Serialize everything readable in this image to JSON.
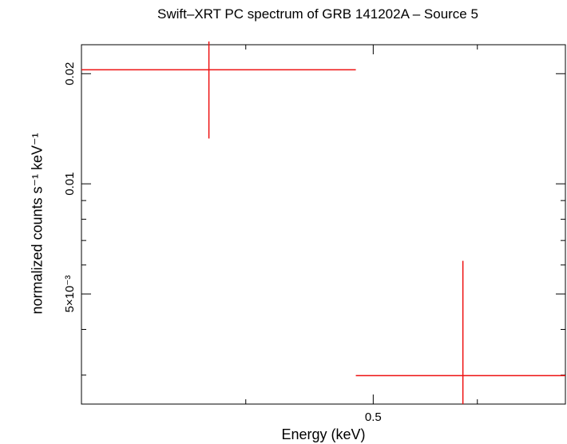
{
  "chart_data": {
    "type": "scatter",
    "title": "Swift–XRT PC spectrum of GRB 141202A – Source 5",
    "xlabel": "Energy (keV)",
    "ylabel": "normalized counts s⁻¹ keV⁻¹",
    "x_scale": "log",
    "y_scale": "log",
    "xlim": [
      0.3,
      0.7
    ],
    "ylim": [
      0.0025,
      0.024
    ],
    "x_tick_labels": [
      "0.5"
    ],
    "y_tick_labels": [
      "0.02",
      "0.01",
      "5×10⁻³"
    ],
    "grid": false,
    "series": [
      {
        "color": "#ee1111",
        "points": [
          {
            "x": 0.375,
            "xlo": 0.3,
            "xhi": 0.485,
            "y": 0.0205,
            "ylo": 0.0133,
            "yhi": 0.0245
          },
          {
            "x": 0.585,
            "xlo": 0.485,
            "xhi": 0.7,
            "y": 0.00299,
            "ylo": 0.0025,
            "yhi": 0.00616
          }
        ]
      }
    ]
  }
}
